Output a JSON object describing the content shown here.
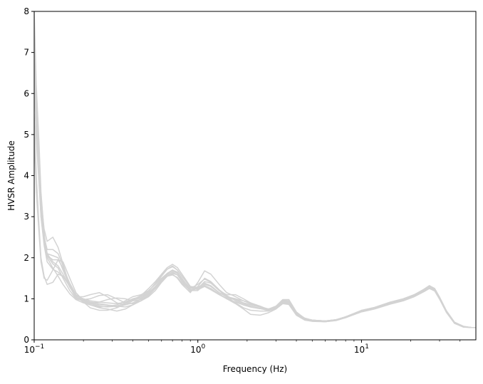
{
  "chart_data": {
    "type": "line",
    "title": "",
    "xlabel": "Frequency (Hz)",
    "ylabel": "HVSR Amplitude",
    "xscale": "log",
    "xlim": [
      0.1,
      50
    ],
    "ylim": [
      0,
      8
    ],
    "grid": false,
    "legend": "none",
    "line_color": "#d3d3d3",
    "x_ticks": [
      {
        "value": 0.1,
        "base": "10",
        "exp": "−1"
      },
      {
        "value": 1,
        "base": "10",
        "exp": "0"
      },
      {
        "value": 10,
        "base": "10",
        "exp": "1"
      }
    ],
    "y_ticks": [
      {
        "value": 0,
        "label": "0"
      },
      {
        "value": 1,
        "label": "1"
      },
      {
        "value": 2,
        "label": "2"
      },
      {
        "value": 3,
        "label": "3"
      },
      {
        "value": 4,
        "label": "4"
      },
      {
        "value": 5,
        "label": "5"
      },
      {
        "value": 6,
        "label": "6"
      },
      {
        "value": 7,
        "label": "7"
      },
      {
        "value": 8,
        "label": "8"
      }
    ],
    "x": [
      0.1,
      0.103,
      0.107,
      0.11,
      0.115,
      0.12,
      0.13,
      0.14,
      0.15,
      0.165,
      0.18,
      0.2,
      0.22,
      0.25,
      0.28,
      0.32,
      0.36,
      0.4,
      0.45,
      0.5,
      0.55,
      0.6,
      0.65,
      0.7,
      0.75,
      0.8,
      0.9,
      1.0,
      1.1,
      1.2,
      1.35,
      1.5,
      1.7,
      1.9,
      2.1,
      2.4,
      2.7,
      3.0,
      3.3,
      3.6,
      4.0,
      4.5,
      5.0,
      6.0,
      7.0,
      8.0,
      10.0,
      12.0,
      15.0,
      18.0,
      21.0,
      24.0,
      26.0,
      28.0,
      30.0,
      33.0,
      37.0,
      42.0,
      47.0,
      50.0
    ],
    "series": [
      {
        "values": [
          8.0,
          6.2,
          4.8,
          3.6,
          2.6,
          2.05,
          1.85,
          1.75,
          1.5,
          1.2,
          1.0,
          0.95,
          0.9,
          0.85,
          0.85,
          0.8,
          0.85,
          0.95,
          1.05,
          1.2,
          1.35,
          1.5,
          1.62,
          1.7,
          1.62,
          1.45,
          1.2,
          1.2,
          1.35,
          1.3,
          1.15,
          1.05,
          1.0,
          0.9,
          0.85,
          0.8,
          0.75,
          0.8,
          0.95,
          0.92,
          0.65,
          0.52,
          0.48,
          0.46,
          0.48,
          0.55,
          0.7,
          0.77,
          0.9,
          0.98,
          1.08,
          1.2,
          1.28,
          1.22,
          1.02,
          0.7,
          0.42,
          0.32,
          0.3,
          0.3
        ]
      },
      {
        "values": [
          6.8,
          5.3,
          4.1,
          3.2,
          2.5,
          2.2,
          2.2,
          2.1,
          1.8,
          1.35,
          1.05,
          1.05,
          1.1,
          1.15,
          1.05,
          0.9,
          0.85,
          0.9,
          1.0,
          1.15,
          1.3,
          1.45,
          1.55,
          1.58,
          1.52,
          1.38,
          1.2,
          1.25,
          1.42,
          1.38,
          1.2,
          1.1,
          1.1,
          1.0,
          0.9,
          0.8,
          0.75,
          0.82,
          0.98,
          0.98,
          0.68,
          0.52,
          0.48,
          0.45,
          0.48,
          0.56,
          0.69,
          0.76,
          0.88,
          0.96,
          1.06,
          1.18,
          1.26,
          1.2,
          1.0,
          0.68,
          0.41,
          0.32,
          0.3,
          0.3
        ]
      },
      {
        "values": [
          5.5,
          4.0,
          2.8,
          2.0,
          1.55,
          1.35,
          1.4,
          1.6,
          1.55,
          1.3,
          1.1,
          0.98,
          0.85,
          0.8,
          0.82,
          0.85,
          0.95,
          1.05,
          1.1,
          1.2,
          1.35,
          1.55,
          1.72,
          1.8,
          1.7,
          1.55,
          1.3,
          1.25,
          1.3,
          1.22,
          1.1,
          1.0,
          0.92,
          0.85,
          0.8,
          0.76,
          0.72,
          0.78,
          0.92,
          0.9,
          0.62,
          0.5,
          0.46,
          0.45,
          0.48,
          0.56,
          0.71,
          0.78,
          0.9,
          0.99,
          1.1,
          1.22,
          1.3,
          1.24,
          1.03,
          0.7,
          0.42,
          0.32,
          0.3,
          0.3
        ]
      },
      {
        "values": [
          7.4,
          5.8,
          4.5,
          3.4,
          2.7,
          2.4,
          2.5,
          2.25,
          1.85,
          1.3,
          1.02,
          0.98,
          1.0,
          1.08,
          1.1,
          1.0,
          0.9,
          0.88,
          0.95,
          1.05,
          1.2,
          1.4,
          1.55,
          1.6,
          1.5,
          1.35,
          1.15,
          1.4,
          1.68,
          1.6,
          1.35,
          1.15,
          1.05,
          0.95,
          0.9,
          0.82,
          0.74,
          0.8,
          0.96,
          0.95,
          0.66,
          0.53,
          0.48,
          0.46,
          0.49,
          0.56,
          0.72,
          0.79,
          0.92,
          1.0,
          1.1,
          1.23,
          1.32,
          1.25,
          1.04,
          0.71,
          0.43,
          0.33,
          0.3,
          0.3
        ]
      },
      {
        "values": [
          6.2,
          4.9,
          3.8,
          3.0,
          2.35,
          2.05,
          1.95,
          1.95,
          1.75,
          1.38,
          1.1,
          0.92,
          0.78,
          0.72,
          0.72,
          0.78,
          0.88,
          0.98,
          1.08,
          1.25,
          1.42,
          1.6,
          1.76,
          1.84,
          1.76,
          1.6,
          1.3,
          1.28,
          1.32,
          1.25,
          1.1,
          1.02,
          0.98,
          0.88,
          0.82,
          0.77,
          0.71,
          0.76,
          0.9,
          0.88,
          0.61,
          0.49,
          0.46,
          0.44,
          0.47,
          0.54,
          0.68,
          0.75,
          0.87,
          0.95,
          1.05,
          1.17,
          1.25,
          1.19,
          0.99,
          0.67,
          0.4,
          0.31,
          0.3,
          0.3
        ]
      },
      {
        "values": [
          7.8,
          6.0,
          4.6,
          3.5,
          2.55,
          2.1,
          1.9,
          1.8,
          1.6,
          1.28,
          1.05,
          0.92,
          0.88,
          0.82,
          0.8,
          0.82,
          0.9,
          0.97,
          1.02,
          1.12,
          1.28,
          1.45,
          1.58,
          1.65,
          1.58,
          1.42,
          1.18,
          1.3,
          1.5,
          1.42,
          1.22,
          1.08,
          0.95,
          0.85,
          0.8,
          0.76,
          0.72,
          0.77,
          0.93,
          0.91,
          0.64,
          0.51,
          0.47,
          0.45,
          0.48,
          0.55,
          0.7,
          0.77,
          0.89,
          0.97,
          1.07,
          1.19,
          1.27,
          1.21,
          1.0,
          0.69,
          0.41,
          0.32,
          0.3,
          0.3
        ]
      },
      {
        "values": [
          5.0,
          3.6,
          2.6,
          1.9,
          1.5,
          1.45,
          1.7,
          1.95,
          1.9,
          1.5,
          1.15,
          0.95,
          0.9,
          0.92,
          0.98,
          1.02,
          1.0,
          0.95,
          0.98,
          1.1,
          1.25,
          1.42,
          1.55,
          1.62,
          1.58,
          1.48,
          1.25,
          1.35,
          1.48,
          1.4,
          1.2,
          1.05,
          0.9,
          0.78,
          0.72,
          0.7,
          0.7,
          0.76,
          0.9,
          0.89,
          0.63,
          0.5,
          0.47,
          0.45,
          0.48,
          0.55,
          0.7,
          0.77,
          0.9,
          0.98,
          1.08,
          1.2,
          1.29,
          1.23,
          1.02,
          0.7,
          0.42,
          0.32,
          0.3,
          0.3
        ]
      },
      {
        "values": [
          7.1,
          5.5,
          4.2,
          3.2,
          2.4,
          2.0,
          1.75,
          1.55,
          1.35,
          1.12,
          0.98,
          0.9,
          0.85,
          0.78,
          0.75,
          0.7,
          0.75,
          0.85,
          1.0,
          1.18,
          1.38,
          1.58,
          1.72,
          1.78,
          1.7,
          1.55,
          1.28,
          1.22,
          1.3,
          1.25,
          1.12,
          1.0,
          0.88,
          0.75,
          0.62,
          0.6,
          0.66,
          0.75,
          0.88,
          0.86,
          0.6,
          0.48,
          0.45,
          0.44,
          0.47,
          0.54,
          0.69,
          0.76,
          0.88,
          0.96,
          1.06,
          1.18,
          1.26,
          1.2,
          1.0,
          0.68,
          0.41,
          0.31,
          0.3,
          0.3
        ]
      },
      {
        "values": [
          6.5,
          5.0,
          3.9,
          3.0,
          2.3,
          1.9,
          1.72,
          1.65,
          1.55,
          1.3,
          1.08,
          0.98,
          0.92,
          0.88,
          0.85,
          0.82,
          0.8,
          0.85,
          0.95,
          1.08,
          1.25,
          1.45,
          1.6,
          1.7,
          1.65,
          1.5,
          1.22,
          1.25,
          1.38,
          1.32,
          1.15,
          1.05,
          1.0,
          0.95,
          0.88,
          0.8,
          0.72,
          0.78,
          0.94,
          0.93,
          0.65,
          0.52,
          0.48,
          0.46,
          0.49,
          0.56,
          0.71,
          0.78,
          0.91,
          0.99,
          1.09,
          1.21,
          1.3,
          1.24,
          1.03,
          0.7,
          0.42,
          0.32,
          0.3,
          0.3
        ]
      },
      {
        "values": [
          7.6,
          5.9,
          4.4,
          3.3,
          2.5,
          2.1,
          2.05,
          2.0,
          1.7,
          1.3,
          1.08,
          1.0,
          0.95,
          0.92,
          0.9,
          0.88,
          0.92,
          1.0,
          1.05,
          1.15,
          1.3,
          1.48,
          1.62,
          1.68,
          1.62,
          1.48,
          1.25,
          1.28,
          1.38,
          1.3,
          1.15,
          1.05,
          0.98,
          0.9,
          0.86,
          0.8,
          0.75,
          0.8,
          0.97,
          0.95,
          0.66,
          0.52,
          0.48,
          0.46,
          0.49,
          0.56,
          0.71,
          0.78,
          0.91,
          0.99,
          1.09,
          1.22,
          1.31,
          1.25,
          1.04,
          0.71,
          0.43,
          0.32,
          0.3,
          0.3
        ]
      }
    ]
  }
}
